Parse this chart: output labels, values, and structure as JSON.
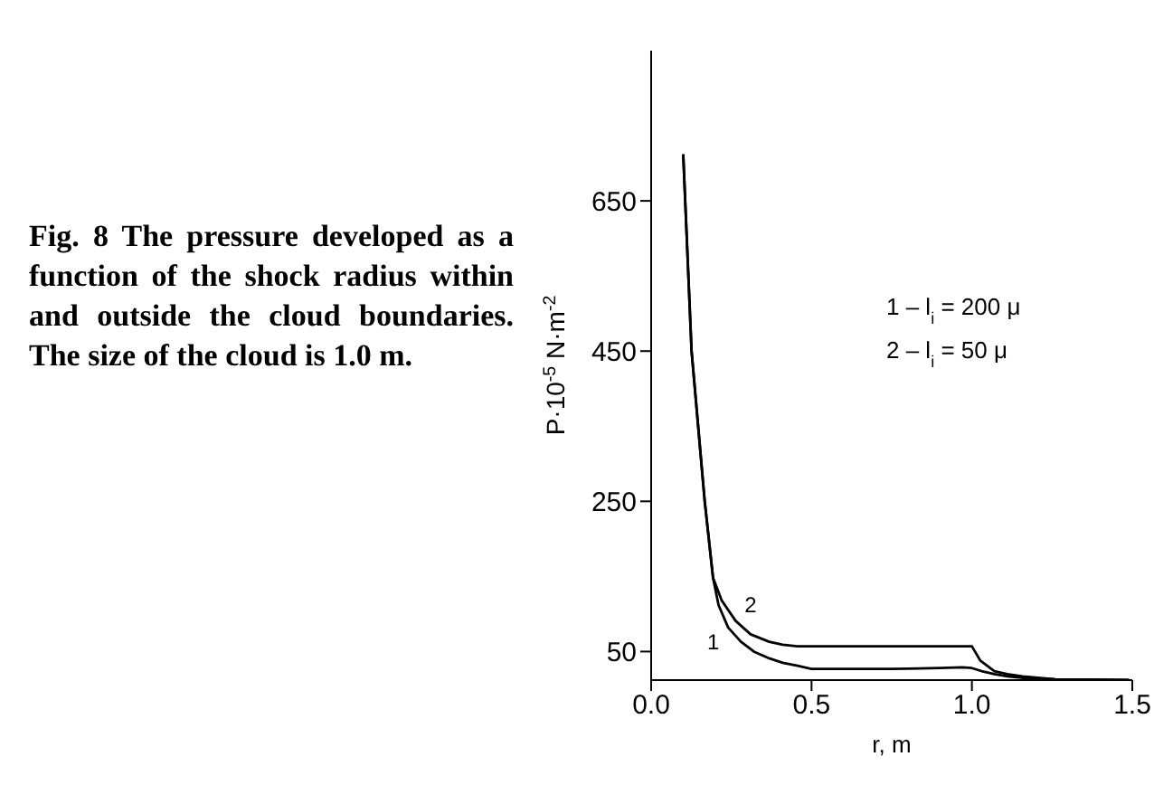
{
  "chart_data": {
    "type": "line",
    "title": "Fig. 8 The pressure developed as a function of the shock radius within and outside the cloud boundaries. The size of the cloud is 1.0 m.",
    "xlabel": "r, m",
    "ylabel": "P·10$^{-5}$ N·m$^{-2}$",
    "xlim": [
      0,
      1.5
    ],
    "xticks": [
      {
        "value": 0,
        "label": "0.0"
      },
      {
        "value": 0.5,
        "label": "0.5"
      },
      {
        "value": 1,
        "label": "1.0"
      },
      {
        "value": 1.5,
        "label": "1.5"
      }
    ],
    "ylim": [
      12,
      850
    ],
    "yticks": [
      50,
      250,
      450,
      650
    ],
    "series": [
      {
        "name": "1",
        "color": "#000000",
        "x": [
          0.1,
          0.126,
          0.167,
          0.193,
          0.21,
          0.24,
          0.28,
          0.32,
          0.368,
          0.41,
          0.456,
          0.5,
          0.6,
          0.75,
          0.9,
          0.97,
          1.0,
          1.03,
          1.07,
          1.11,
          1.16,
          1.26,
          1.49
        ],
        "values": [
          712,
          450,
          250,
          148,
          112,
          82,
          63,
          50,
          41,
          35,
          31,
          27,
          27,
          27,
          28,
          29,
          28,
          24,
          20,
          17,
          15,
          13,
          12
        ]
      },
      {
        "name": "2",
        "color": "#000000",
        "x": [
          0.1,
          0.126,
          0.167,
          0.193,
          0.22,
          0.263,
          0.31,
          0.368,
          0.41,
          0.456,
          0.5,
          0.7,
          0.9,
          1.0,
          1.026,
          1.07,
          1.11,
          1.158,
          1.26,
          1.49
        ],
        "values": [
          712,
          450,
          250,
          148,
          118,
          91,
          73,
          63,
          59,
          57,
          57,
          57,
          57,
          57,
          38,
          24,
          20,
          17,
          13,
          12
        ]
      }
    ],
    "annotations": [
      "1 – l$_{i}$ = 200 μ",
      "2 – l$_{i}$ = 50 μ"
    ],
    "grid": false,
    "legend": false,
    "marker": "none",
    "line_style": "solid"
  }
}
